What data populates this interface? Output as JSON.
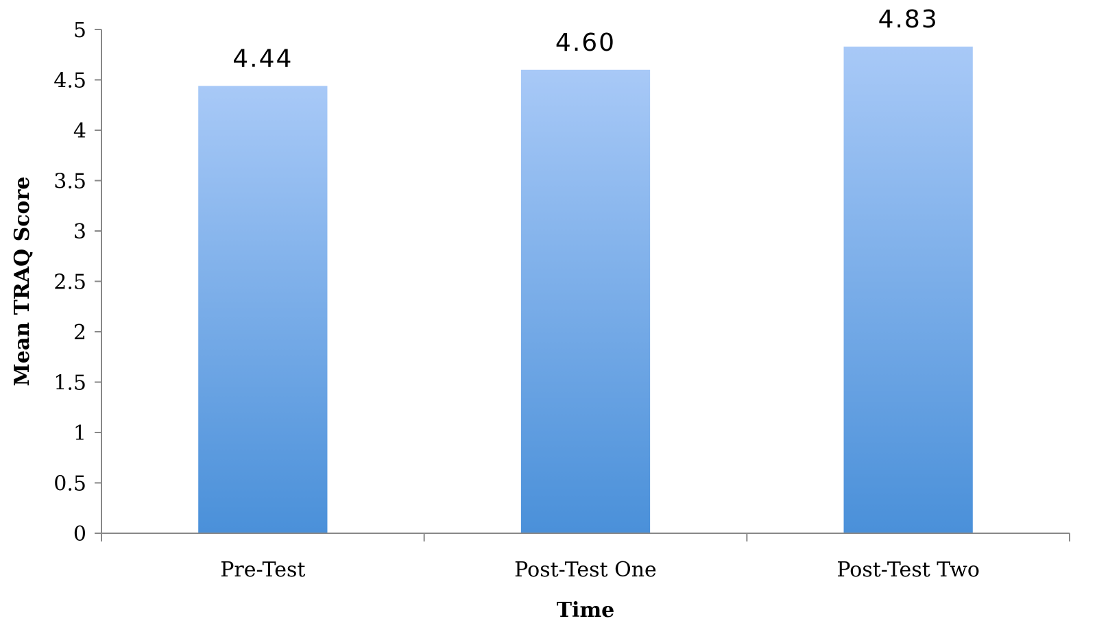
{
  "chart_data": {
    "type": "bar",
    "categories": [
      "Pre-Test",
      "Post-Test One",
      "Post-Test Two"
    ],
    "values": [
      4.44,
      4.6,
      4.83
    ],
    "value_labels": [
      "4.44",
      "4.60",
      "4.83"
    ],
    "xlabel": "Time",
    "ylabel": "Mean TRAQ Score",
    "ylim": [
      0,
      5
    ],
    "yticks": [
      0,
      0.5,
      1,
      1.5,
      2,
      2.5,
      3,
      3.5,
      4,
      4.5,
      5
    ],
    "ytick_labels": [
      "0",
      "0.5",
      "1",
      "1.5",
      "2",
      "2.5",
      "3",
      "3.5",
      "4",
      "4.5",
      "5"
    ],
    "grid": false,
    "legend": "none",
    "colors": {
      "bar_top": "#a8c9f7",
      "bar_bottom": "#4a90d9",
      "axis": "#888888"
    }
  }
}
